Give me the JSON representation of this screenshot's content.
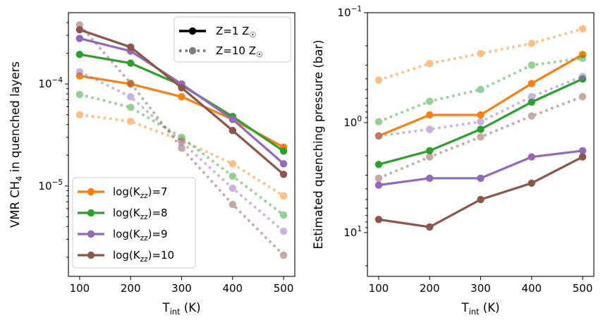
{
  "chart_data": [
    {
      "type": "line",
      "panel": "left",
      "xlabel_main": "T",
      "xlabel_sub": "int",
      "xlabel_unit": " (K)",
      "ylabel_pre": "VMR CH",
      "ylabel_sub": "4",
      "ylabel_post": " in quenched layers",
      "yscale": "log",
      "xlim": [
        78,
        522
      ],
      "ylim": [
        1.3e-06,
        0.0005
      ],
      "x": [
        100,
        200,
        300,
        400,
        500
      ],
      "x_tick_labels": [
        "100",
        "200",
        "300",
        "400",
        "500"
      ],
      "y_ticks": [
        {
          "value": 0.0001,
          "base": "10",
          "exp": "−4"
        },
        {
          "value": 1e-05,
          "base": "10",
          "exp": "−5"
        }
      ],
      "series": [
        {
          "name": "log(Kzz)=7, Z=1 Z☉",
          "color": "#ff7f0e",
          "style": "solid",
          "values": [
            0.00012,
            0.0001,
            7.5e-05,
            4.5e-05,
            2.4e-05
          ]
        },
        {
          "name": "log(Kzz)=8, Z=1 Z☉",
          "color": "#2ca02c",
          "style": "solid",
          "values": [
            0.000195,
            0.00016,
            9.7e-05,
            4.8e-05,
            2.2e-05
          ]
        },
        {
          "name": "log(Kzz)=9, Z=1 Z☉",
          "color": "#9467bd",
          "style": "solid",
          "values": [
            0.00028,
            0.00021,
            0.0001,
            4.5e-05,
            1.65e-05
          ]
        },
        {
          "name": "log(Kzz)=10, Z=1 Z☉",
          "color": "#8c564b",
          "style": "solid",
          "values": [
            0.00034,
            0.00023,
            9.2e-05,
            3.5e-05,
            1.3e-05
          ]
        },
        {
          "name": "log(Kzz)=7, Z=10 Z☉",
          "color": "#ff7f0e",
          "style": "dotted",
          "values": [
            5e-05,
            4.3e-05,
            2.8e-05,
            1.65e-05,
            8e-06
          ]
        },
        {
          "name": "log(Kzz)=8, Z=10 Z☉",
          "color": "#2ca02c",
          "style": "dotted",
          "values": [
            7.9e-05,
            5.9e-05,
            3e-05,
            1.25e-05,
            5.2e-06
          ]
        },
        {
          "name": "log(Kzz)=9, Z=10 Z☉",
          "color": "#9467bd",
          "style": "dotted",
          "values": [
            0.000132,
            7.5e-05,
            2.7e-05,
            9.5e-06,
            3.6e-06
          ]
        },
        {
          "name": "log(Kzz)=10, Z=10 Z☉",
          "color": "#8c564b",
          "style": "dotted",
          "values": [
            0.00038,
            0.000102,
            2.35e-05,
            6.6e-06,
            2.1e-06
          ]
        }
      ],
      "legend": {
        "placement": "lower-left",
        "entries": [
          {
            "pre": "log(K",
            "sub": "zz",
            "post": ")=7",
            "color": "#ff7f0e"
          },
          {
            "pre": "log(K",
            "sub": "zz",
            "post": ")=8",
            "color": "#2ca02c"
          },
          {
            "pre": "log(K",
            "sub": "zz",
            "post": ")=9",
            "color": "#9467bd"
          },
          {
            "pre": "log(K",
            "sub": "zz",
            "post": ")=10",
            "color": "#8c564b"
          }
        ]
      },
      "style_legend": {
        "placement": "upper-right",
        "entries": [
          {
            "label": "Z=1 Z",
            "sub": "☉",
            "style": "solid"
          },
          {
            "label": "Z=10 Z",
            "sub": "☉",
            "style": "dotted"
          }
        ]
      }
    },
    {
      "type": "line",
      "panel": "right",
      "xlabel_main": "T",
      "xlabel_sub": "int",
      "xlabel_unit": " (K)",
      "ylabel": "Estimated quenching pressure (bar)",
      "yscale": "log",
      "yaxis_inverted": true,
      "xlim": [
        78,
        522
      ],
      "ylim": [
        0.1,
        25
      ],
      "x": [
        100,
        200,
        300,
        400,
        500
      ],
      "x_tick_labels": [
        "100",
        "200",
        "300",
        "400",
        "500"
      ],
      "y_ticks": [
        {
          "value": 0.1,
          "base": "10",
          "exp": "−1"
        },
        {
          "value": 1,
          "base": "10",
          "exp": "0"
        },
        {
          "value": 10,
          "base": "10",
          "exp": "1"
        }
      ],
      "series": [
        {
          "name": "log(Kzz)=7, Z=1 Z☉",
          "color": "#ff7f0e",
          "style": "solid",
          "values": [
            1.32,
            0.85,
            0.85,
            0.44,
            0.24
          ]
        },
        {
          "name": "log(Kzz)=8, Z=1 Z☉",
          "color": "#2ca02c",
          "style": "solid",
          "values": [
            2.4,
            1.8,
            1.15,
            0.65,
            0.4
          ]
        },
        {
          "name": "log(Kzz)=9, Z=1 Z☉",
          "color": "#9467bd",
          "style": "solid",
          "values": [
            3.7,
            3.2,
            3.2,
            2.05,
            1.8
          ]
        },
        {
          "name": "log(Kzz)=10, Z=1 Z☉",
          "color": "#8c564b",
          "style": "solid",
          "values": [
            7.6,
            8.9,
            5.0,
            3.55,
            2.05
          ]
        },
        {
          "name": "log(Kzz)=7, Z=10 Z☉",
          "color": "#ff7f0e",
          "style": "dotted",
          "values": [
            0.41,
            0.29,
            0.235,
            0.19,
            0.14
          ]
        },
        {
          "name": "log(Kzz)=8, Z=10 Z☉",
          "color": "#2ca02c",
          "style": "dotted",
          "values": [
            0.98,
            0.64,
            0.5,
            0.3,
            0.26
          ]
        },
        {
          "name": "log(Kzz)=9, Z=10 Z☉",
          "color": "#9467bd",
          "style": "dotted",
          "values": [
            1.32,
            1.15,
            0.98,
            0.58,
            0.38
          ]
        },
        {
          "name": "log(Kzz)=10, Z=10 Z☉",
          "color": "#8c564b",
          "style": "dotted",
          "values": [
            3.2,
            2.05,
            1.35,
            0.87,
            0.58
          ]
        }
      ]
    }
  ]
}
